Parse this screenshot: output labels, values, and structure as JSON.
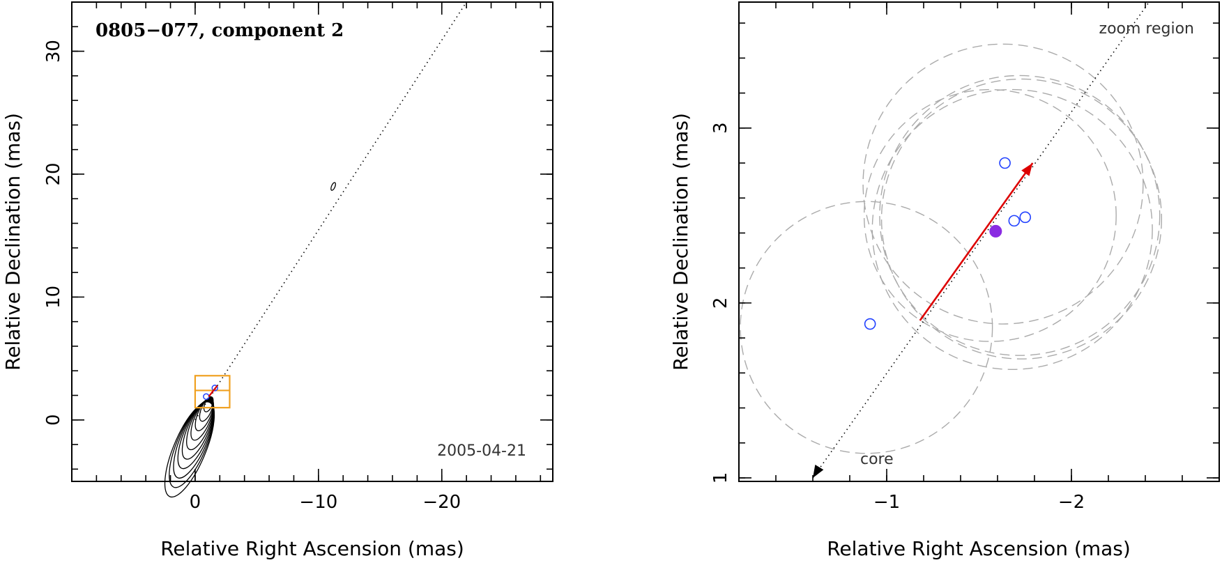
{
  "chart_data": [
    {
      "type": "contour",
      "title": "0805−077, component 2",
      "epoch": "2005-04-21",
      "xlabel": "Relative Right Ascension (mas)",
      "ylabel": "Relative Declination (mas)",
      "xlim": [
        10,
        -29
      ],
      "ylim": [
        -5,
        34
      ],
      "xticks": [
        {
          "value": 0,
          "label": "0"
        },
        {
          "value": -10,
          "label": "−10"
        },
        {
          "value": -20,
          "label": "−20"
        }
      ],
      "yticks": [
        {
          "value": 0,
          "label": "0"
        },
        {
          "value": 10,
          "label": "10"
        },
        {
          "value": 20,
          "label": "20"
        },
        {
          "value": 30,
          "label": "30"
        }
      ],
      "jet_direction_line": {
        "from": [
          0,
          0
        ],
        "to": [
          -22,
          34
        ]
      },
      "zoom_box": {
        "x": [
          0,
          -2.8
        ],
        "y": [
          1,
          3.6
        ]
      },
      "contour_levels": 10,
      "colors": {
        "zoom_box": "#f0a020",
        "marker": "#2040ff",
        "arrow": "#dd0000"
      }
    },
    {
      "type": "scatter",
      "xlabel": "Relative Right Ascension (mas)",
      "ylabel": "Relative Declination (mas)",
      "xlim": [
        -0.2,
        -2.8
      ],
      "ylim": [
        0.98,
        3.72
      ],
      "xticks": [
        {
          "value": -1,
          "label": "−1"
        },
        {
          "value": -2,
          "label": "−2"
        }
      ],
      "yticks": [
        {
          "value": 1,
          "label": "1"
        },
        {
          "value": 2,
          "label": "2"
        },
        {
          "value": 3,
          "label": "3"
        }
      ],
      "label_zoom": "zoom region",
      "label_core": "core",
      "core_arrow": {
        "from": [
          -1.05,
          1.78
        ],
        "to": [
          -0.6,
          1.0
        ]
      },
      "jet_line": {
        "from": [
          -0.6,
          1.0
        ],
        "to": [
          -2.42,
          3.72
        ]
      },
      "open_circles": [
        {
          "x": -1.64,
          "y": 2.8
        },
        {
          "x": -1.69,
          "y": 2.47
        },
        {
          "x": -1.75,
          "y": 2.49
        },
        {
          "x": -0.91,
          "y": 1.88
        }
      ],
      "filled_point": {
        "x": -1.59,
        "y": 2.41,
        "color": "#8a2be2"
      },
      "velocity_arrow": {
        "from": [
          -1.18,
          1.9
        ],
        "to": [
          -1.79,
          2.8
        ],
        "color": "#dd0000"
      },
      "dashed_circles": [
        {
          "cx": -1.63,
          "cy": 2.68,
          "r": 0.8
        },
        {
          "cx": -1.68,
          "cy": 2.42,
          "r": 0.8
        },
        {
          "cx": -1.72,
          "cy": 2.5,
          "r": 0.8
        },
        {
          "cx": -1.73,
          "cy": 2.48,
          "r": 0.8
        },
        {
          "cx": -1.56,
          "cy": 2.5,
          "r": 0.72
        },
        {
          "cx": -0.89,
          "cy": 1.86,
          "r": 0.72
        }
      ]
    }
  ]
}
